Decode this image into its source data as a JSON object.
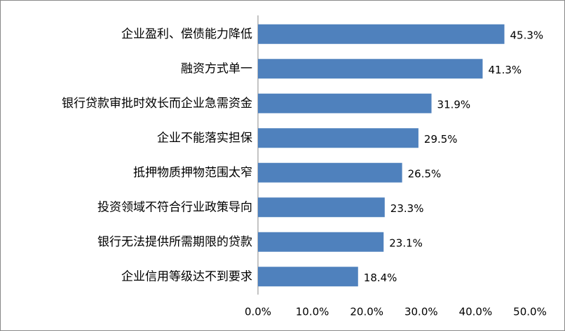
{
  "chart_data": {
    "type": "bar",
    "orientation": "horizontal",
    "categories": [
      "企业盈利、偿债能力降低",
      "融资方式单一",
      "银行贷款审批时效长而企业急需资金",
      "企业不能落实担保",
      "抵押物质押物范围太窄",
      "投资领域不符合行业政策导向",
      "银行无法提供所需期限的贷款",
      "企业信用等级达不到要求"
    ],
    "values": [
      45.3,
      41.3,
      31.9,
      29.5,
      26.5,
      23.3,
      23.1,
      18.4
    ],
    "value_labels": [
      "45.3%",
      "41.3%",
      "31.9%",
      "29.5%",
      "26.5%",
      "23.3%",
      "23.1%",
      "18.4%"
    ],
    "color": "#4f81bd",
    "xlim": [
      0,
      50
    ],
    "xticks": [
      {
        "value": 0,
        "label": "0.0%"
      },
      {
        "value": 10,
        "label": "10.0%"
      },
      {
        "value": 20,
        "label": "20.0%"
      },
      {
        "value": 30,
        "label": "30.0%"
      },
      {
        "value": 40,
        "label": "40.0%"
      },
      {
        "value": 50,
        "label": "50.0%"
      }
    ],
    "grid": false
  }
}
